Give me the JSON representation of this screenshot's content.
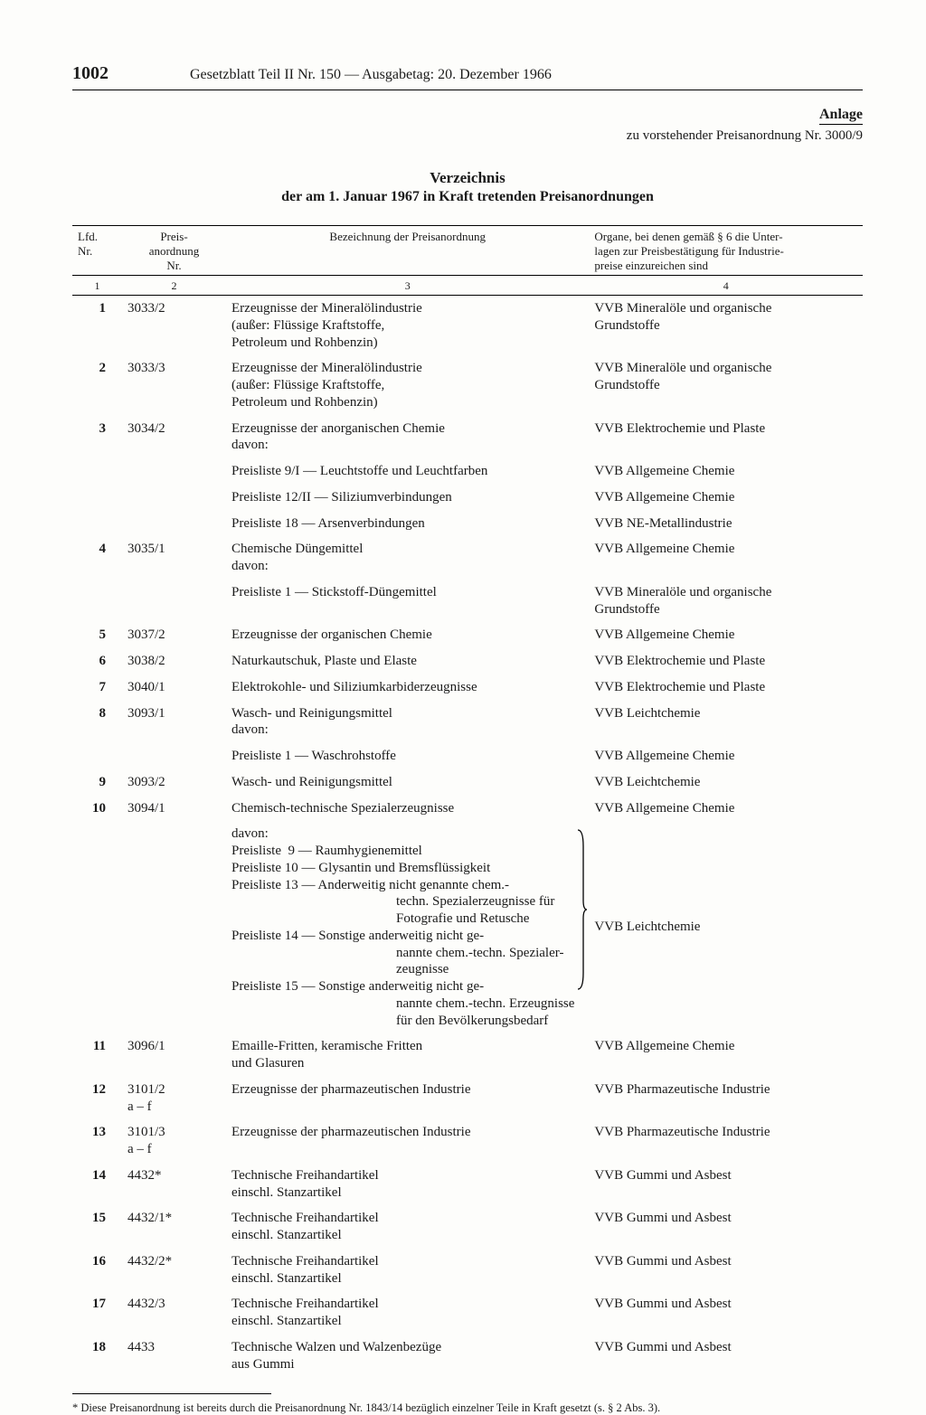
{
  "page_number": "1002",
  "header": "Gesetzblatt Teil II Nr. 150 — Ausgabetag: 20. Dezember 1966",
  "anlage": {
    "title": "Anlage",
    "subtitle": "zu vorstehender Preisanordnung Nr. 3000/9"
  },
  "verzeichnis": {
    "title": "Verzeichnis",
    "subtitle": "der am 1. Januar 1967 in Kraft tretenden Preisanordnungen"
  },
  "columns": {
    "c1": "Lfd.\nNr.",
    "c2": "Preis-\nanordnung\nNr.",
    "c3": "Bezeichnung der Preisanordnung",
    "c4": "Organe, bei denen gemäß § 6 die Unter-\nlagen zur Preisbestätigung für Industrie-\npreise einzureichen sind",
    "n1": "1",
    "n2": "2",
    "n3": "3",
    "n4": "4"
  },
  "rows": [
    {
      "n": "1",
      "nr": "3033/2",
      "bez": "Erzeugnisse der Mineralölindustrie\n(außer: Flüssige Kraftstoffe,\nPetroleum und Rohbenzin)",
      "org": "VVB Mineralöle und organische\nGrundstoffe"
    },
    {
      "n": "2",
      "nr": "3033/3",
      "bez": "Erzeugnisse der Mineralölindustrie\n(außer: Flüssige Kraftstoffe,\nPetroleum und Rohbenzin)",
      "org": "VVB Mineralöle und organische\nGrundstoffe"
    },
    {
      "n": "3",
      "nr": "3034/2",
      "bez": "Erzeugnisse der anorganischen Chemie\ndavon:",
      "org": "VVB Elektrochemie und Plaste"
    },
    {
      "n": "",
      "nr": "",
      "bez": "Preisliste 9/I — Leuchtstoffe und Leuchtfarben",
      "org": "VVB Allgemeine Chemie"
    },
    {
      "n": "",
      "nr": "",
      "bez": "Preisliste 12/II — Siliziumverbindungen",
      "org": "VVB Allgemeine Chemie"
    },
    {
      "n": "",
      "nr": "",
      "bez": "Preisliste 18 — Arsenverbindungen",
      "org": "VVB NE-Metallindustrie"
    },
    {
      "n": "4",
      "nr": "3035/1",
      "bez": "Chemische Düngemittel\ndavon:",
      "org": "VVB Allgemeine Chemie"
    },
    {
      "n": "",
      "nr": "",
      "bez": "Preisliste 1 — Stickstoff-Düngemittel",
      "org": "VVB Mineralöle und organische\nGrundstoffe"
    },
    {
      "n": "5",
      "nr": "3037/2",
      "bez": "Erzeugnisse der organischen Chemie",
      "org": "VVB Allgemeine Chemie"
    },
    {
      "n": "6",
      "nr": "3038/2",
      "bez": "Naturkautschuk, Plaste und Elaste",
      "org": "VVB Elektrochemie und Plaste"
    },
    {
      "n": "7",
      "nr": "3040/1",
      "bez": "Elektrokohle- und Siliziumkarbiderzeugnisse",
      "org": "VVB Elektrochemie und Plaste"
    },
    {
      "n": "8",
      "nr": "3093/1",
      "bez": "Wasch- und Reinigungsmittel\ndavon:",
      "org": "VVB Leichtchemie"
    },
    {
      "n": "",
      "nr": "",
      "bez": "Preisliste 1 — Waschrohstoffe",
      "org": "VVB Allgemeine Chemie"
    },
    {
      "n": "9",
      "nr": "3093/2",
      "bez": "Wasch- und Reinigungsmittel",
      "org": "VVB Leichtchemie"
    },
    {
      "n": "10",
      "nr": "3094/1",
      "bez": "Chemisch-technische Spezialerzeugnisse",
      "org": "VVB Allgemeine Chemie"
    },
    {
      "n": "11",
      "nr": "3096/1",
      "bez": "Emaille-Fritten, keramische Fritten\nund Glasuren",
      "org": "VVB Allgemeine Chemie"
    },
    {
      "n": "12",
      "nr": "3101/2\na – f",
      "bez": "Erzeugnisse der pharmazeutischen Industrie",
      "org": "VVB Pharmazeutische Industrie"
    },
    {
      "n": "13",
      "nr": "3101/3\na – f",
      "bez": "Erzeugnisse der pharmazeutischen Industrie",
      "org": "VVB Pharmazeutische Industrie"
    },
    {
      "n": "14",
      "nr": "4432*",
      "bez": "Technische Freihandartikel\neinschl. Stanzartikel",
      "org": "VVB Gummi und Asbest"
    },
    {
      "n": "15",
      "nr": "4432/1*",
      "bez": "Technische Freihandartikel\neinschl. Stanzartikel",
      "org": "VVB Gummi und Asbest"
    },
    {
      "n": "16",
      "nr": "4432/2*",
      "bez": "Technische Freihandartikel\neinschl. Stanzartikel",
      "org": "VVB Gummi und Asbest"
    },
    {
      "n": "17",
      "nr": "4432/3",
      "bez": "Technische Freihandartikel\neinschl. Stanzartikel",
      "org": "VVB Gummi und Asbest"
    },
    {
      "n": "18",
      "nr": "4433",
      "bez": "Technische Walzen und Walzenbezüge\naus Gummi",
      "org": "VVB Gummi und Asbest"
    }
  ],
  "row10_davon": {
    "davon": "davon:",
    "items": [
      "Preisliste  9 — Raumhygienemittel",
      "Preisliste 10 — Glysantin und Bremsflüssigkeit",
      "Preisliste 13 — Anderweitig nicht genannte chem.-\n                        techn. Spezialerzeugnisse für\n                        Fotografie und Retusche",
      "Preisliste 14 — Sonstige anderweitig nicht ge-\n                        nannte chem.-techn. Spezialer-\n                        zeugnisse",
      "Preisliste 15 — Sonstige anderweitig nicht ge-\n                        nannte chem.-techn. Erzeugnisse\n                        für den Bevölkerungsbedarf"
    ],
    "org": "VVB Leichtchemie"
  },
  "footnote": "* Diese Preisanordnung ist bereits durch die Preisanordnung Nr. 1843/14 bezüglich einzelner Teile in Kraft gesetzt (s. § 2 Abs. 3)."
}
